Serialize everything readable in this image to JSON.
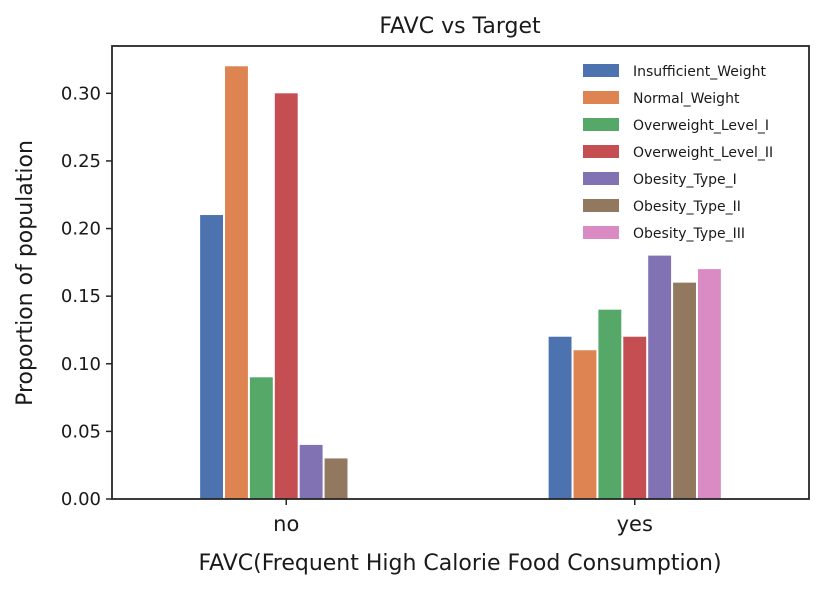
{
  "chart_data": {
    "type": "bar",
    "title": "FAVC vs Target",
    "xlabel": "FAVC(Frequent High Calorie Food Consumption)",
    "ylabel": "Proportion of population",
    "categories": [
      "no",
      "yes"
    ],
    "ylim": [
      0,
      0.335
    ],
    "yticks": [
      "0.00",
      "0.05",
      "0.10",
      "0.15",
      "0.20",
      "0.25",
      "0.30"
    ],
    "grid": false,
    "legend_position": "top-right",
    "series": [
      {
        "name": "Insufficient_Weight",
        "color": "#4c72b0",
        "values": [
          0.21,
          0.12
        ]
      },
      {
        "name": "Normal_Weight",
        "color": "#dd8452",
        "values": [
          0.32,
          0.11
        ]
      },
      {
        "name": "Overweight_Level_I",
        "color": "#55a868",
        "values": [
          0.09,
          0.14
        ]
      },
      {
        "name": "Overweight_Level_II",
        "color": "#c44e52",
        "values": [
          0.3,
          0.12
        ]
      },
      {
        "name": "Obesity_Type_I",
        "color": "#8172b3",
        "values": [
          0.04,
          0.18
        ]
      },
      {
        "name": "Obesity_Type_II",
        "color": "#937860",
        "values": [
          0.03,
          0.16
        ]
      },
      {
        "name": "Obesity_Type_III",
        "color": "#da8bc3",
        "values": [
          0.0,
          0.17
        ]
      }
    ]
  }
}
